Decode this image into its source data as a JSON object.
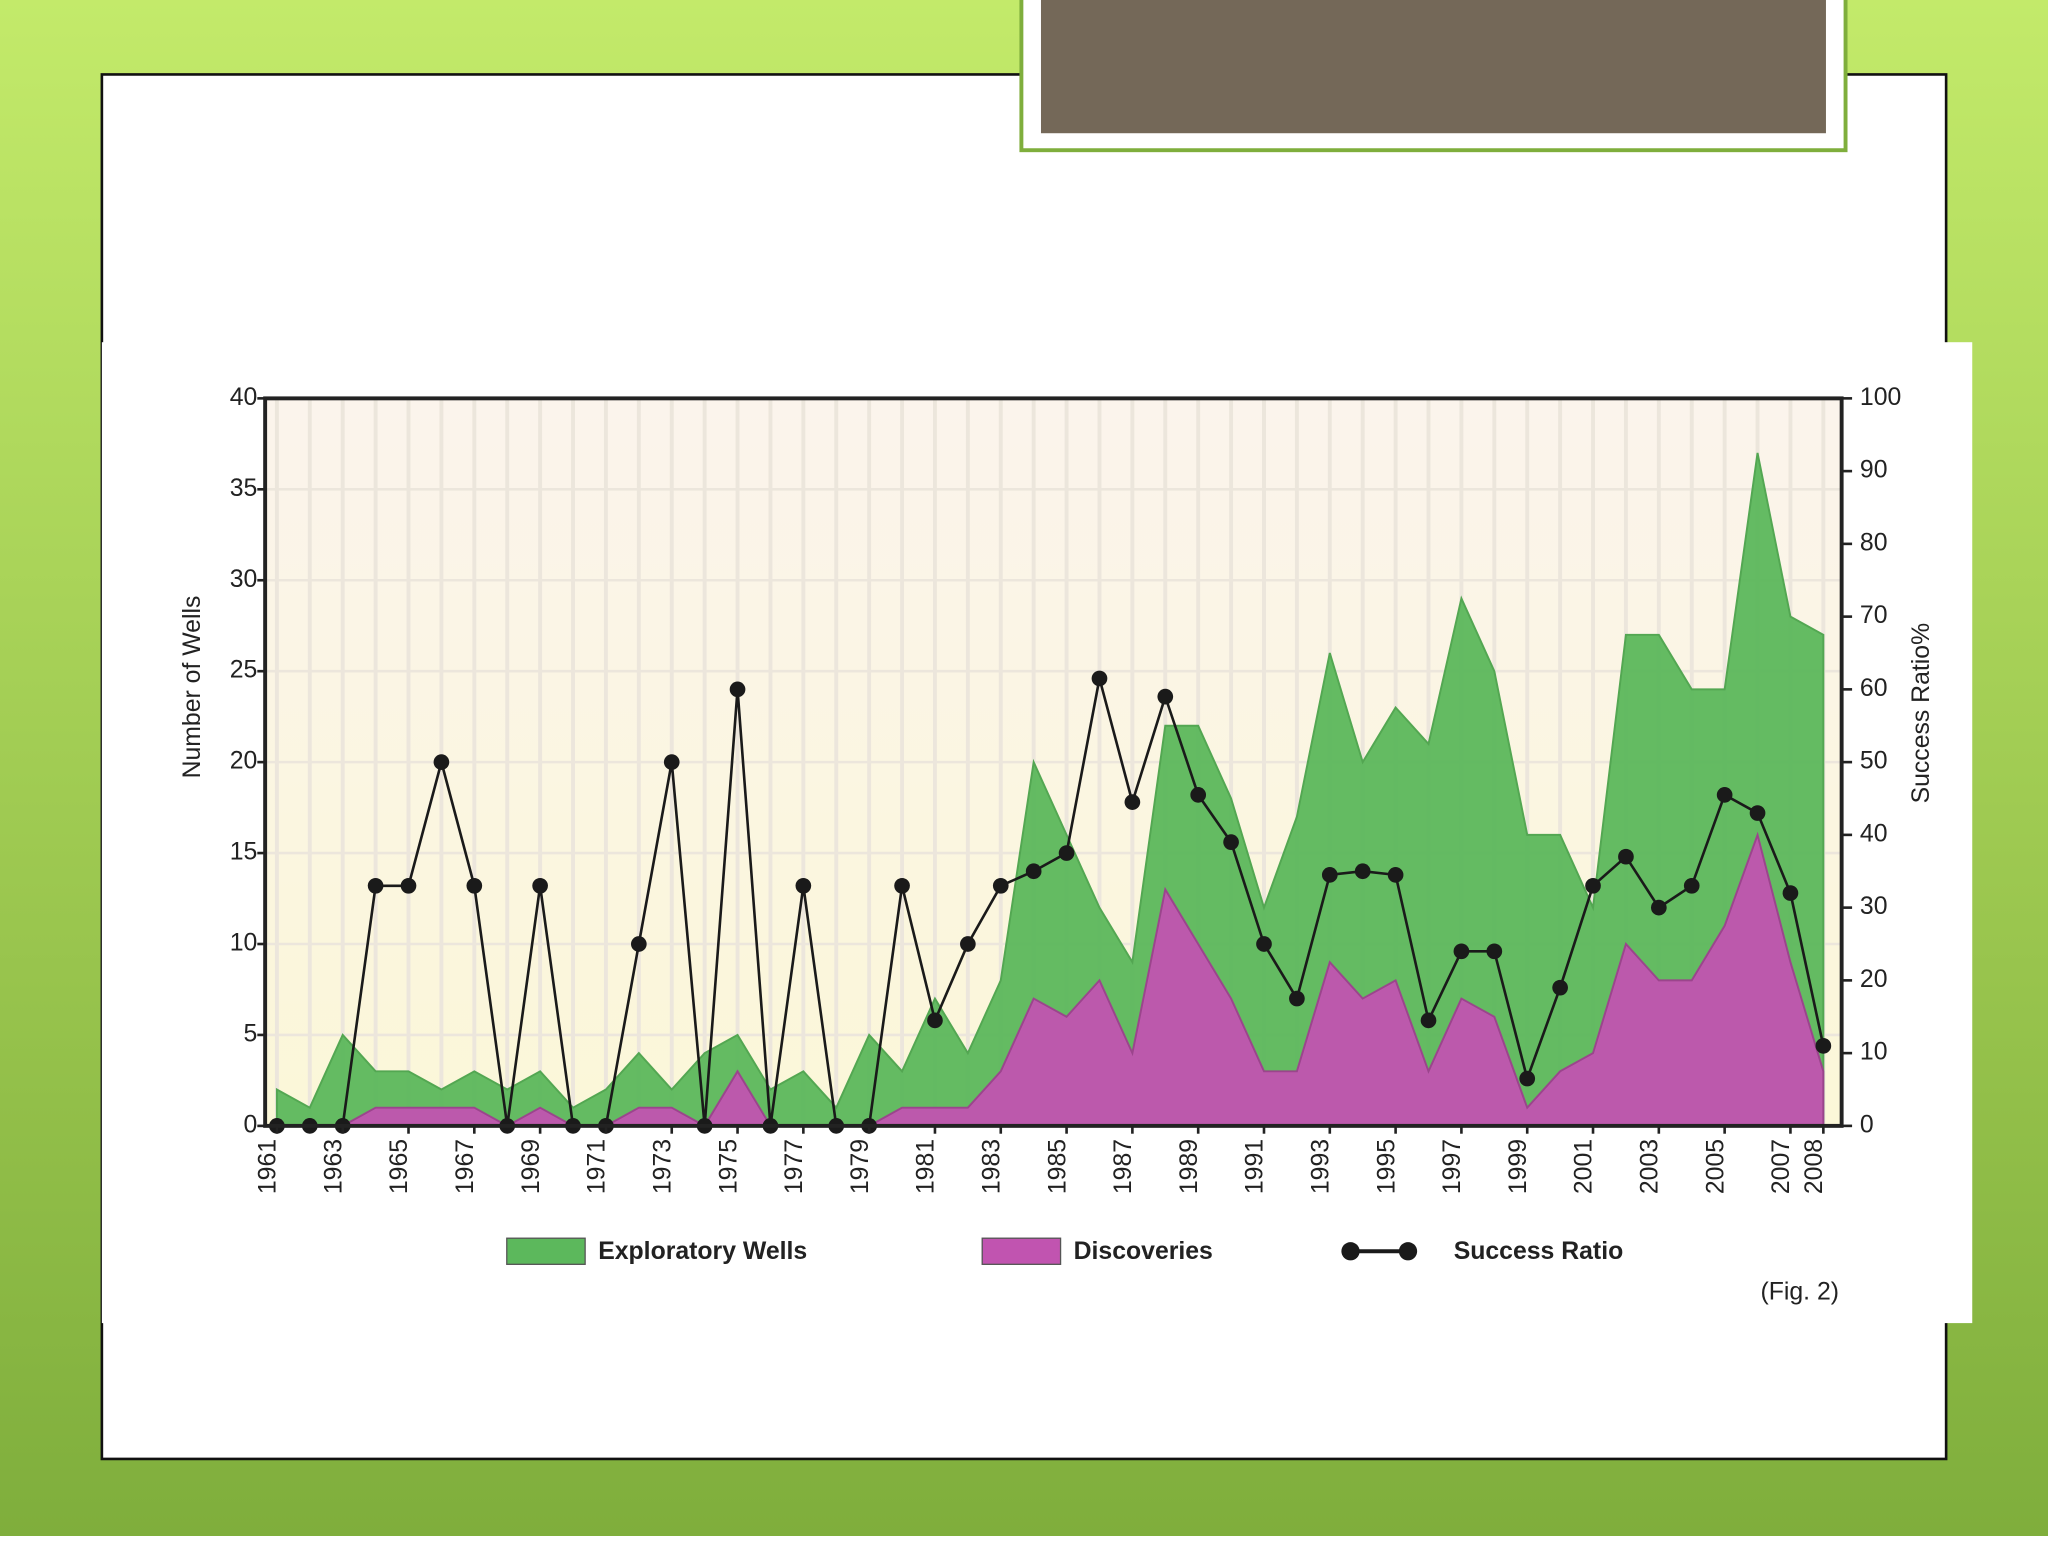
{
  "chart_data": {
    "type": "area",
    "categories": [
      "1961",
      null,
      "1963",
      null,
      "1965",
      null,
      "1967",
      null,
      "1969",
      null,
      "1971",
      null,
      "1973",
      null,
      "1975",
      null,
      "1977",
      null,
      "1979",
      null,
      "1981",
      null,
      "1983",
      null,
      "1985",
      null,
      "1987",
      null,
      "1989",
      null,
      "1991",
      null,
      "1993",
      null,
      "1995",
      null,
      "1997",
      null,
      "1999",
      null,
      "2001",
      null,
      "2003",
      null,
      "2005",
      null,
      "2007",
      "2008"
    ],
    "series": [
      {
        "name": "Exploratory Wells",
        "color": "#5cb85c",
        "values": [
          2,
          1,
          5,
          3,
          3,
          2,
          3,
          2,
          3,
          1,
          2,
          4,
          2,
          4,
          5,
          2,
          3,
          1,
          5,
          3,
          7,
          4,
          8,
          20,
          16,
          12,
          9,
          22,
          22,
          18,
          12,
          17,
          26,
          20,
          23,
          21,
          29,
          25,
          16,
          16,
          12,
          27,
          27,
          24,
          24,
          37,
          28,
          27
        ]
      },
      {
        "name": "Discoveries",
        "color": "#c154b0",
        "values": [
          0,
          0,
          0,
          1,
          1,
          1,
          1,
          0,
          1,
          0,
          0,
          1,
          1,
          0,
          3,
          0,
          0,
          0,
          0,
          1,
          1,
          1,
          3,
          7,
          6,
          8,
          4,
          13,
          10,
          7,
          3,
          3,
          9,
          7,
          8,
          3,
          7,
          6,
          1,
          3,
          4,
          10,
          8,
          8,
          11,
          16,
          9,
          3
        ]
      },
      {
        "name": "Success Ratio",
        "color": "#1a1a1a",
        "axis": "y2",
        "values": [
          0,
          0,
          0,
          33,
          33,
          50,
          33,
          0,
          33,
          0,
          0,
          25,
          50,
          0,
          60,
          0,
          33,
          0,
          0,
          33,
          14.5,
          25,
          33,
          35,
          37.5,
          61.5,
          44.5,
          59,
          45.5,
          39,
          25,
          17.5,
          34.5,
          35,
          34.5,
          14.5,
          24,
          24,
          6.5,
          19,
          33,
          37,
          30,
          33,
          45.5,
          43,
          32,
          11
        ]
      }
    ],
    "ylabel": "Number of Wells",
    "y2label": "Success Ratio%",
    "ylim": [
      0,
      40
    ],
    "yticks": [
      0,
      5,
      10,
      15,
      20,
      25,
      30,
      35,
      40
    ],
    "y2lim": [
      0,
      100
    ],
    "y2ticks": [
      0,
      10,
      20,
      30,
      40,
      50,
      60,
      70,
      80,
      90,
      100
    ],
    "grid": true,
    "annotation": "(Fig. 2)"
  }
}
